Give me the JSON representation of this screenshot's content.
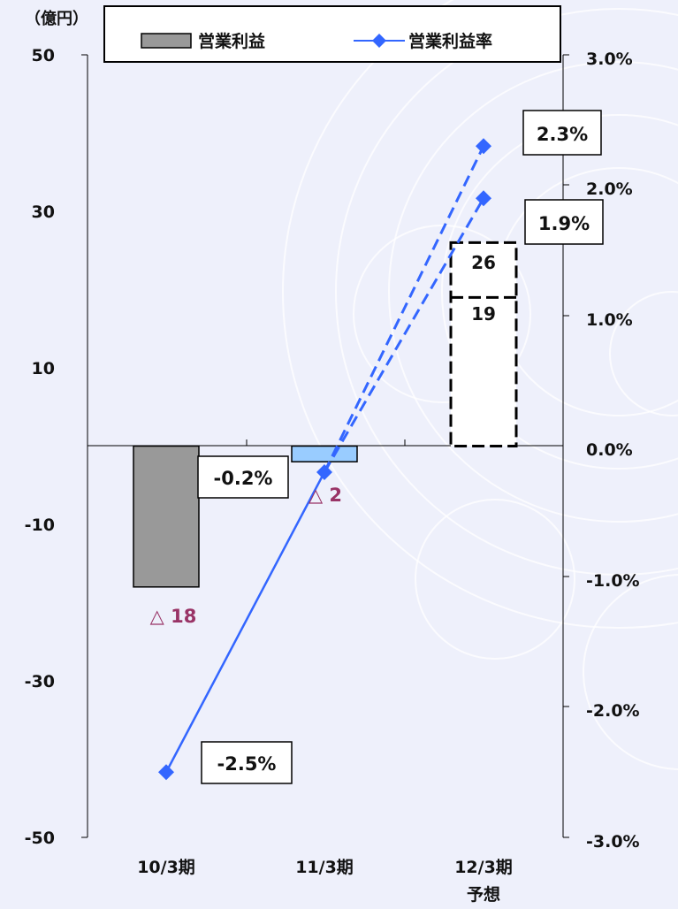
{
  "chart_data": {
    "type": "bar",
    "unit_label": "（億円）",
    "categories": [
      "10/3期",
      "11/3期",
      "12/3期"
    ],
    "category_sublabels": [
      "",
      "",
      "予想"
    ],
    "left_axis": {
      "ticks": [
        "50",
        "30",
        "10",
        "-10",
        "-30",
        "-50"
      ],
      "ylim": [
        -50,
        50
      ]
    },
    "right_axis": {
      "ticks": [
        "3.0%",
        "2.0%",
        "1.0%",
        "0.0%",
        "-1.0%",
        "-2.0%",
        "-3.0%"
      ],
      "ylim": [
        -3.0,
        3.0
      ]
    },
    "legend": {
      "bar": "営業利益",
      "line": "営業利益率"
    },
    "series": [
      {
        "name": "営業利益",
        "values": [
          -18,
          -2,
          26
        ],
        "labels": [
          "△ 18",
          "△ 2",
          "26"
        ],
        "forecast_alt": {
          "value": 19,
          "label": "19"
        }
      },
      {
        "name": "営業利益率",
        "values": [
          -2.5,
          -0.2,
          2.3
        ],
        "labels": [
          "-2.5%",
          "-0.2%",
          "2.3%"
        ],
        "forecast_alt": {
          "value": 1.9,
          "label": "1.9%"
        }
      }
    ],
    "colors": {
      "bar_10": "#999999",
      "bar_11": "#99ccff",
      "line": "#3366ff",
      "marker": "#3366ff",
      "negative_label": "#993366"
    }
  }
}
